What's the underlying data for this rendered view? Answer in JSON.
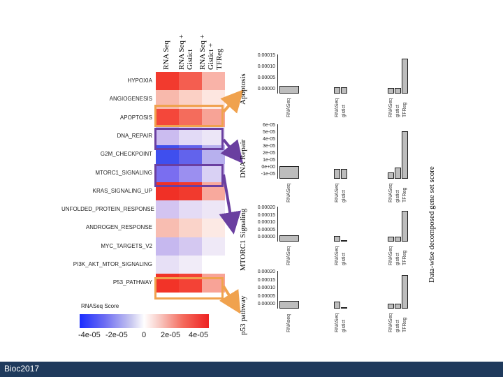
{
  "column_headers": [
    "RNA Seq",
    "RNA Seq + Gistict",
    "RNA Seq + Gistict + TFReg"
  ],
  "pathways": [
    "HYPOXIA",
    "ANGIOGENESIS",
    "APOPTOSIS",
    "DNA_REPAIR",
    "G2M_CHECKPOINT",
    "MTORC1_SIGNALING",
    "KRAS_SIGNALING_UP",
    "UNFOLDED_PROTEIN_RESPONSE",
    "ANDROGEN_RESPONSE",
    "MYC_TARGETS_V2",
    "PI3K_AKT_MTOR_SIGNALING",
    "P53_PATHWAY"
  ],
  "heatmap_colors": [
    [
      "#f23a2e",
      "#f45e50",
      "#f9b3a8"
    ],
    [
      "#f8b9ac",
      "#fbd0c5",
      "#fde6e0"
    ],
    [
      "#f4473a",
      "#f46c5c",
      "#f7a396"
    ],
    [
      "#cbbcf0",
      "#e2daf6",
      "#ece6f7"
    ],
    [
      "#3f4fee",
      "#6263ec",
      "#b7b0ee"
    ],
    [
      "#7a6ef0",
      "#9b8ff0",
      "#d9d1f4"
    ],
    [
      "#f03026",
      "#f13a2e",
      "#f8a99d"
    ],
    [
      "#d3c4f1",
      "#e4dbf5",
      "#ede6f6"
    ],
    [
      "#f8bdb1",
      "#fad3c9",
      "#fce9e4"
    ],
    [
      "#c6b8ef",
      "#d4c8f1",
      "#efe9f7"
    ],
    [
      "#e7e0f6",
      "#f1ecf8",
      "#ffffff"
    ],
    [
      "#f23328",
      "#f34236",
      "#f8a397"
    ]
  ],
  "scale": {
    "title": "RNASeq Score",
    "ticks": [
      "-4e-05",
      "-2e-05",
      "0",
      "2e-05",
      "4e-05"
    ]
  },
  "annotations": {
    "apoptosis": "Apoptosis",
    "dna_repair": "DNA Repair",
    "mtorc1": "MTORC1 Signaling",
    "p53": "p53 pathway",
    "right_title": "Data-wise decomposed gene set score"
  },
  "panels": [
    {
      "name": "Apoptosis",
      "ticks": [
        "0.00015",
        "0.00010",
        "0.00005",
        "0.00000"
      ],
      "groups": [
        [
          "RNASeq"
        ],
        [
          "RNASeq",
          "gistict"
        ],
        [
          "RNASeq",
          "gistict",
          "TFReg"
        ]
      ]
    },
    {
      "name": "DNA Repair",
      "ticks": [
        "6e-05",
        "5e-05",
        "4e-05",
        "3e-05",
        "2e-05",
        "1e-05",
        "0e+00",
        "-1e-05"
      ],
      "groups": [
        [
          "RNASeq"
        ],
        [
          "RNASeq",
          "gistict"
        ],
        [
          "RNASeq",
          "gistict",
          "TFReg"
        ]
      ]
    },
    {
      "name": "MTORC1 Signaling",
      "ticks": [
        "0.00020",
        "0.00015",
        "0.00010",
        "0.00005",
        "0.00000"
      ],
      "groups": [
        [
          "RNASeq"
        ],
        [
          "RNASeq",
          "gistict"
        ],
        [
          "RNASeq",
          "gistict",
          "TFReg"
        ]
      ]
    },
    {
      "name": "p53 pathway",
      "ticks": [
        "0.00020",
        "0.00015",
        "0.00010",
        "0.00005",
        "0.00000"
      ],
      "groups": [
        [
          "RNAseq"
        ],
        [
          "RNASeq",
          "gistict"
        ],
        [
          "RNASeq",
          "gistict",
          "TFReg"
        ]
      ]
    }
  ],
  "footer": "Bioc2017",
  "colors": {
    "footer_bg": "#1f3a5c",
    "orange": "#f0a24e",
    "purple": "#6a3fa0"
  }
}
